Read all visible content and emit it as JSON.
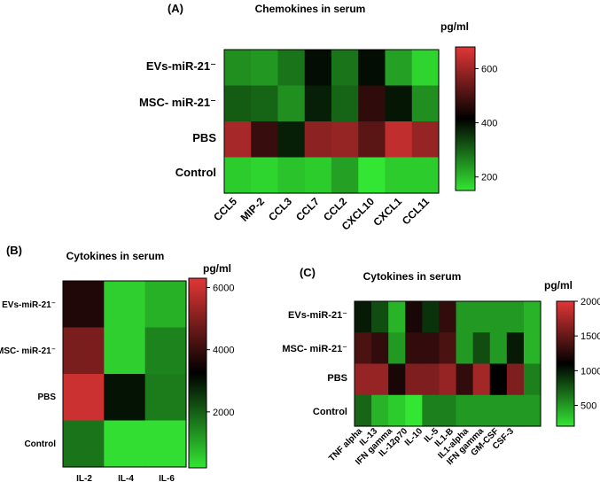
{
  "chart_data": [
    {
      "id": "A",
      "type": "heatmap",
      "panel_label": "(A)",
      "title": "Chemokines in serum",
      "unit_label": "pg/ml",
      "rows": [
        "EVs-miR-21⁻",
        "MSC- miR-21⁻",
        "PBS",
        "Control"
      ],
      "columns": [
        "CCL5",
        "MIP-2",
        "CCL3",
        "CCL7",
        "CCL2",
        "CXCL10",
        "CXCL1",
        "CCL11"
      ],
      "values": [
        [
          250,
          240,
          280,
          400,
          280,
          400,
          230,
          170
        ],
        [
          310,
          300,
          250,
          380,
          300,
          470,
          390,
          250
        ],
        [
          610,
          480,
          380,
          580,
          590,
          520,
          640,
          590
        ],
        [
          180,
          170,
          190,
          180,
          230,
          140,
          180,
          180
        ]
      ],
      "vmin": 150,
      "vmax": 680,
      "colorbar_ticks": [
        200,
        400,
        600
      ],
      "colorbar_tick_labels": [
        "200",
        "400",
        "600"
      ]
    },
    {
      "id": "B",
      "type": "heatmap",
      "panel_label": "(B)",
      "title": "Cytokines in serum",
      "unit_label": "pg/ml",
      "rows": [
        "EVs-miR-21⁻",
        "MSC- miR-21⁻",
        "PBS",
        "Control"
      ],
      "columns": [
        "IL-2",
        "IL-4",
        "IL-6"
      ],
      "values": [
        [
          3700,
          500,
          900
        ],
        [
          4900,
          500,
          1500
        ],
        [
          6000,
          3000,
          1600
        ],
        [
          1700,
          300,
          300
        ]
      ],
      "vmin": 200,
      "vmax": 6300,
      "colorbar_ticks": [
        2000,
        4000,
        6000
      ],
      "colorbar_tick_labels": [
        "2000",
        "4000",
        "6000"
      ]
    },
    {
      "id": "C",
      "type": "heatmap",
      "panel_label": "(C)",
      "title": "Cytokines in serum",
      "unit_label": "pg/ml",
      "rows": [
        "EVs-miR-21⁻",
        "MSC- miR-21⁻",
        "PBS",
        "Control"
      ],
      "columns": [
        "TNF alpha",
        "IL-13",
        "IFN gamma",
        "IL-12p70",
        "IL-10",
        "IL-5",
        "IL1-B",
        "IL1-alpha",
        "IFN gamma",
        "GM-CSF",
        "CSF-3"
      ],
      "values": [
        [
          1000,
          800,
          400,
          1200,
          900,
          1300,
          500,
          500,
          500,
          500,
          400
        ],
        [
          1400,
          1300,
          500,
          1300,
          1300,
          1400,
          500,
          800,
          500,
          1000,
          400
        ],
        [
          1700,
          1700,
          1200,
          1600,
          1600,
          1700,
          1300,
          1750,
          1100,
          1600,
          600
        ],
        [
          700,
          400,
          300,
          200,
          600,
          600,
          500,
          500,
          500,
          500,
          500
        ]
      ],
      "vmin": 200,
      "vmax": 2000,
      "colorbar_ticks": [
        500,
        1000,
        1500,
        2000
      ],
      "colorbar_tick_labels": [
        "500",
        "1000",
        "1500",
        "2000"
      ]
    }
  ]
}
